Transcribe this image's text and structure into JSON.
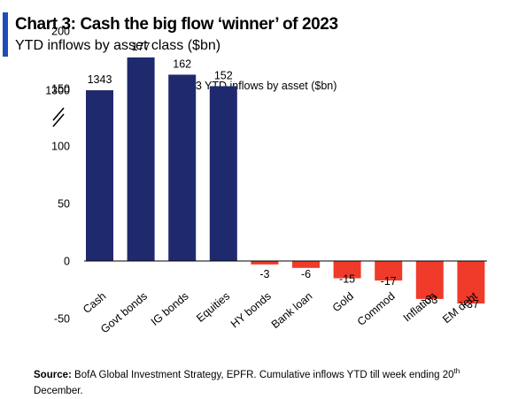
{
  "header": {
    "title": "Chart 3: Cash the big flow ‘winner’ of 2023",
    "subtitle": "YTD inflows by asset class ($bn)"
  },
  "colors": {
    "accent": "#1f4db8",
    "positive": "#1f2a6e",
    "negative": "#f03a2a"
  },
  "chart_data": {
    "type": "bar",
    "title": "2023 YTD inflows by asset ($bn)",
    "categories": [
      "Cash",
      "Govt bonds",
      "IG bonds",
      "Equities",
      "HY bonds",
      "Bank loan",
      "Gold",
      "Commod",
      "Inflation",
      "EM debt"
    ],
    "values": [
      1343,
      177,
      162,
      152,
      -3,
      -6,
      -15,
      -17,
      -33,
      -37
    ],
    "data_labels": [
      "1343",
      "177",
      "162",
      "152",
      "-3",
      "-6",
      "-15",
      "-17",
      "-33",
      "-37"
    ],
    "y_ticks": [
      "1300",
      "200",
      "150",
      "100",
      "50",
      "0",
      "-50"
    ],
    "ylim": [
      -50,
      200
    ],
    "axis_break": "between 200 and 1300",
    "grid": false,
    "legend": "none"
  },
  "footer": {
    "source_label": "Source:",
    "source_text": " BofA Global Investment Strategy, EPFR. Cumulative  inflows YTD till week ending 20",
    "source_sup": "th",
    "source_tail": "December."
  }
}
